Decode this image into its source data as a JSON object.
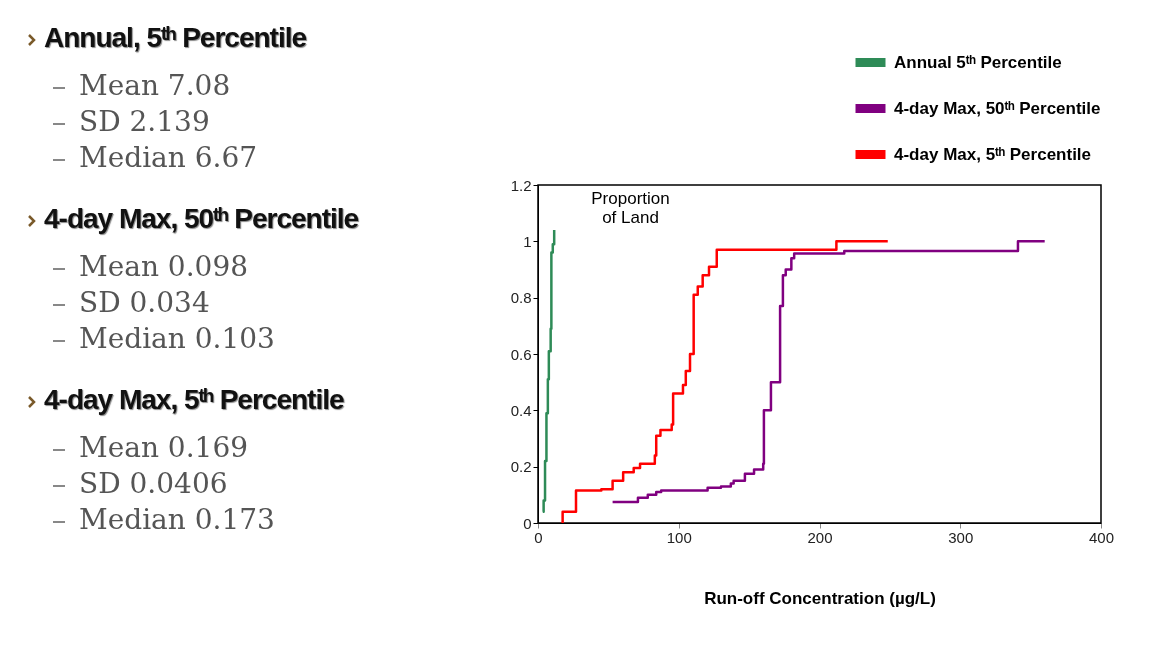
{
  "chart_data": [
    {
      "type": "other",
      "title": "Annual, 5ᵗʰ Percentile",
      "annotations": [
        "Mean 7.08",
        "SD 2.139",
        "Median 6.67"
      ]
    },
    {
      "type": "other",
      "title": "4-day Max, 50ᵗʰ Percentile",
      "annotations": [
        "Mean 0.098",
        "SD 0.034",
        "Median 0.103"
      ]
    },
    {
      "type": "other",
      "title": "4-day Max, 5ᵗʰ Percentile",
      "annotations": [
        "Mean 0.169",
        "SD 0.0406",
        "Median 0.173"
      ]
    },
    {
      "type": "step",
      "ylabel": "Proportion of Land",
      "xlabel": "Run-off Concentration (µg/L)",
      "xlim": [
        0,
        400
      ],
      "xticks": [
        0,
        100,
        200,
        300,
        400
      ],
      "ylim": [
        0,
        1.2
      ],
      "yticks": [
        0,
        0.2,
        0.4,
        0.6,
        0.8,
        1,
        1.2
      ],
      "legend": "top right",
      "series": [
        {
          "name": "Annual 5ᵗʰ Percentile",
          "color": "#2e8b57",
          "x": [
            3.4,
            4,
            5,
            6,
            7,
            7.7,
            9,
            9.5,
            10.5,
            11.5
          ],
          "values": [
            0.04,
            0.08,
            0.22,
            0.39,
            0.51,
            0.61,
            0.69,
            0.96,
            0.99,
            1.04
          ]
        },
        {
          "name": "4-day Max, 50ᵗʰ Percentile",
          "color": "#800080",
          "x": [
            53,
            71,
            78,
            84,
            87.5,
            120.5,
            130,
            137,
            139,
            147,
            153.5,
            160,
            160.5,
            165.5,
            172,
            174,
            176,
            180,
            182,
            217.6,
            341,
            360
          ],
          "values": [
            0.075,
            0.09,
            0.1,
            0.11,
            0.115,
            0.125,
            0.13,
            0.14,
            0.15,
            0.175,
            0.19,
            0.21,
            0.4,
            0.5,
            0.77,
            0.88,
            0.9,
            0.94,
            0.957,
            0.966,
            1.0,
            1.0
          ]
        },
        {
          "name": "4-day Max, 5ᵗʰ Percentile",
          "color": "#ff0000",
          "x": [
            17.5,
            17.5,
            27,
            45,
            53,
            60.5,
            68,
            72.5,
            83,
            84,
            87,
            95,
            96,
            103,
            105,
            108,
            110.6,
            113.5,
            117,
            121.5,
            127,
            212,
            248.5
          ],
          "values": [
            0,
            0.04,
            0.115,
            0.12,
            0.15,
            0.18,
            0.195,
            0.21,
            0.24,
            0.31,
            0.33,
            0.35,
            0.46,
            0.49,
            0.54,
            0.6,
            0.81,
            0.84,
            0.88,
            0.91,
            0.97,
            1.0,
            1.0
          ]
        }
      ]
    }
  ]
}
